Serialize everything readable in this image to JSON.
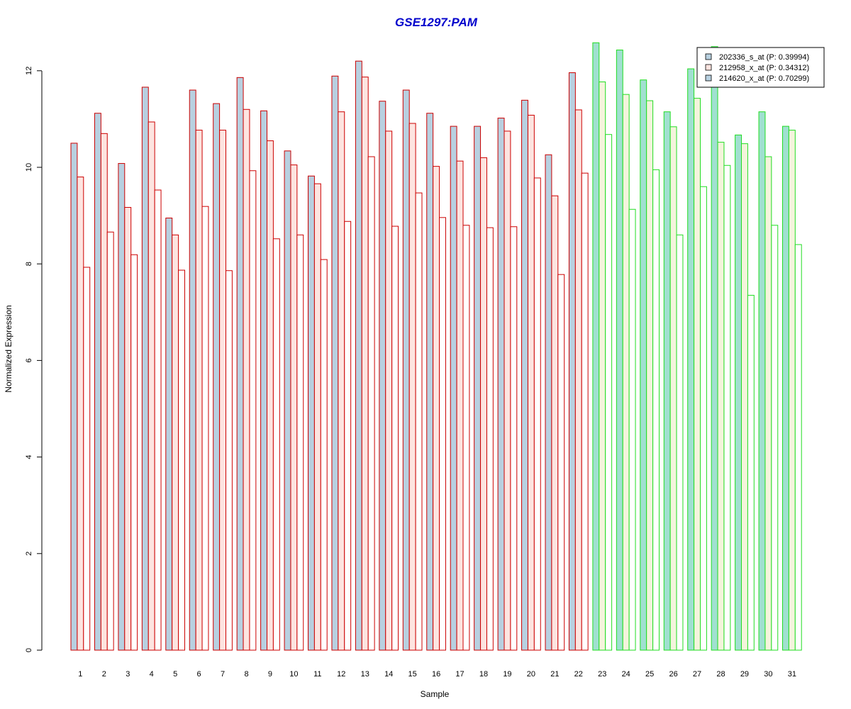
{
  "chart_data": {
    "type": "bar",
    "title": "GSE1297:PAM",
    "xlabel": "Sample",
    "ylabel": "Normalized Expression",
    "ylim": [
      0,
      12.7
    ],
    "yticks": [
      0,
      2,
      4,
      6,
      8,
      10,
      12
    ],
    "grid": false,
    "legend_position": "top-right",
    "categories": [
      "1",
      "2",
      "3",
      "4",
      "5",
      "6",
      "7",
      "8",
      "9",
      "10",
      "11",
      "12",
      "13",
      "14",
      "15",
      "16",
      "17",
      "18",
      "19",
      "20",
      "21",
      "22",
      "23",
      "24",
      "25",
      "26",
      "27",
      "28",
      "29",
      "30",
      "31"
    ],
    "group_outline_colors": {
      "red_samples": [
        "1",
        "2",
        "3",
        "4",
        "5",
        "6",
        "7",
        "8",
        "9",
        "10",
        "11",
        "12",
        "13",
        "14",
        "15",
        "16",
        "17",
        "18",
        "19",
        "20",
        "21",
        "22"
      ],
      "green_samples": [
        "23",
        "24",
        "25",
        "26",
        "27",
        "28",
        "29",
        "30",
        "31"
      ],
      "red": "#cc0000",
      "green": "#22dd22"
    },
    "series": [
      {
        "name": "202336_s_at (P: 0.39994)",
        "fill_red_group": "#b8d0e0",
        "fill_green_group": "#a0e0d0",
        "values": [
          10.5,
          11.12,
          10.08,
          11.66,
          8.95,
          11.6,
          11.32,
          11.86,
          11.17,
          10.34,
          9.82,
          11.89,
          12.2,
          11.37,
          11.6,
          11.12,
          10.85,
          10.85,
          11.02,
          11.39,
          10.26,
          11.96,
          12.58,
          12.43,
          11.81,
          11.15,
          12.04,
          12.5,
          10.67,
          11.15,
          10.85
        ]
      },
      {
        "name": "212958_x_at (P: 0.34312)",
        "fill_red_group": "#fde4e0",
        "fill_green_group": "#f4f4dc",
        "values": [
          9.8,
          10.7,
          9.17,
          10.94,
          8.6,
          10.77,
          10.77,
          11.2,
          10.55,
          10.05,
          9.66,
          11.15,
          11.87,
          10.75,
          10.91,
          10.02,
          10.13,
          10.2,
          10.75,
          11.08,
          9.41,
          11.19,
          11.77,
          11.51,
          11.38,
          10.84,
          11.43,
          10.52,
          10.49,
          10.22,
          10.77
        ]
      },
      {
        "name": "214620_x_at (P: 0.70299)",
        "fill_red_group": "#ffffff",
        "fill_green_group": "#ffffff",
        "values": [
          7.93,
          8.66,
          8.19,
          9.53,
          7.87,
          9.19,
          7.86,
          9.93,
          8.52,
          8.6,
          8.09,
          8.88,
          10.22,
          8.78,
          9.47,
          8.96,
          8.8,
          8.75,
          8.77,
          9.78,
          7.78,
          9.88,
          10.68,
          9.13,
          9.95,
          8.6,
          9.6,
          10.04,
          7.35,
          8.8,
          8.4
        ]
      }
    ],
    "legend_swatch_colors": [
      "#b8d0e0",
      "#fde4e0",
      "#b8d0e0"
    ]
  }
}
